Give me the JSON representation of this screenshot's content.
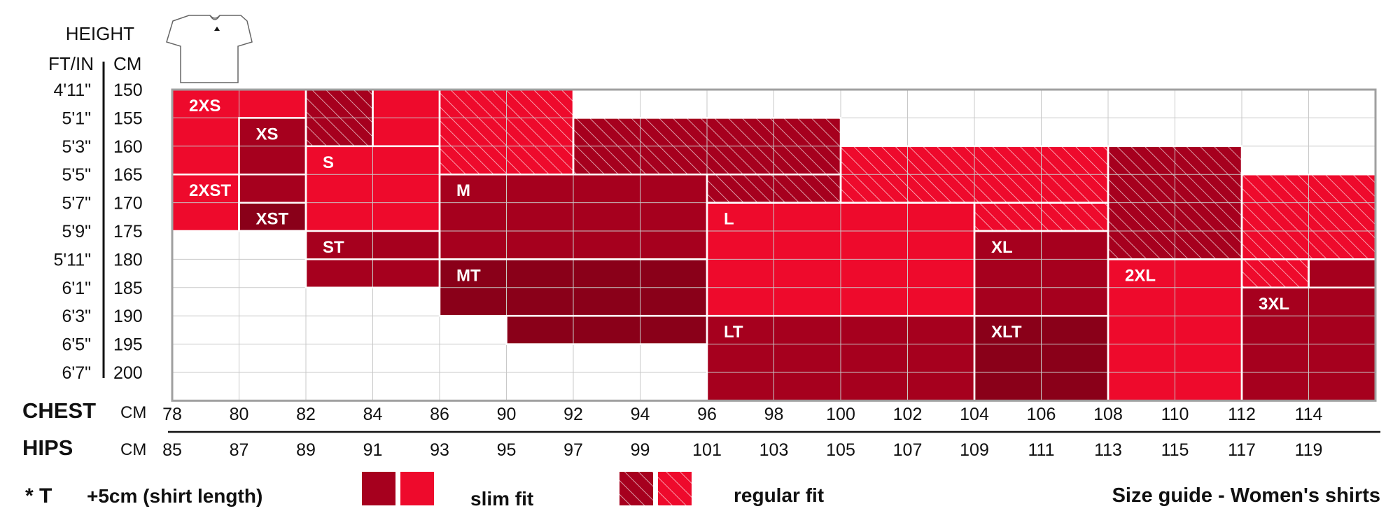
{
  "header": {
    "height_label": "HEIGHT",
    "ftin_label": "FT/IN",
    "cm_label": "CM",
    "shirt_icon": "tshirt-icon"
  },
  "heights_ftin": [
    "4'11\"",
    "5'1\"",
    "5'3\"",
    "5'5\"",
    "5'7\"",
    "5'9\"",
    "5'11\"",
    "6'1\"",
    "6'3\"",
    "6'5\"",
    "6'7\""
  ],
  "heights_cm": [
    "150",
    "155",
    "160",
    "165",
    "170",
    "175",
    "180",
    "185",
    "190",
    "195",
    "200"
  ],
  "chest": {
    "label": "CHEST",
    "unit": "CM",
    "values": [
      "78",
      "80",
      "82",
      "84",
      "86",
      "90",
      "92",
      "94",
      "96",
      "98",
      "100",
      "102",
      "104",
      "106",
      "108",
      "110",
      "112",
      "114"
    ]
  },
  "hips": {
    "label": "HIPS",
    "unit": "CM",
    "values": [
      "85",
      "87",
      "89",
      "91",
      "93",
      "95",
      "97",
      "99",
      "101",
      "103",
      "105",
      "107",
      "109",
      "111",
      "113",
      "115",
      "117",
      "119"
    ]
  },
  "colors": {
    "dark": "#a6001e",
    "bright": "#ee0a2c",
    "darkest": "#8a0019",
    "grid": "#c8c8c8",
    "border": "#a0a0a0"
  },
  "chart_data": {
    "type": "table",
    "columns_count": 18,
    "rows_count": 11,
    "regions": [
      {
        "label": "2XS",
        "fit": "slim",
        "shade": "bright",
        "cells": [
          [
            0,
            0,
            2,
            3
          ]
        ]
      },
      {
        "label": "2XST",
        "fit": "slim",
        "shade": "bright",
        "cells": [
          [
            0,
            3,
            1,
            5
          ]
        ]
      },
      {
        "label": "XS",
        "fit": "slim",
        "shade": "dark",
        "cells": [
          [
            1,
            1,
            2,
            5
          ]
        ]
      },
      {
        "label": "XST",
        "fit": "slim",
        "shade": "darkest",
        "cells": [
          [
            1,
            4,
            2,
            5
          ]
        ]
      },
      {
        "label": "S",
        "fit": "slim",
        "shade": "bright",
        "cells": [
          [
            2,
            2,
            4,
            6
          ],
          [
            3,
            0,
            4,
            2
          ]
        ]
      },
      {
        "label": "ST",
        "fit": "slim",
        "shade": "dark",
        "cells": [
          [
            2,
            5,
            4,
            7
          ]
        ]
      },
      {
        "label": "M",
        "fit": "slim",
        "shade": "dark",
        "cells": [
          [
            4,
            3,
            8,
            6
          ]
        ]
      },
      {
        "label": "MT",
        "fit": "slim",
        "shade": "darkest",
        "cells": [
          [
            4,
            6,
            8,
            8
          ],
          [
            5,
            8,
            8,
            9
          ]
        ]
      },
      {
        "label": "L",
        "fit": "slim",
        "shade": "bright",
        "cells": [
          [
            8,
            4,
            12,
            8
          ]
        ]
      },
      {
        "label": "LT",
        "fit": "slim",
        "shade": "dark",
        "cells": [
          [
            8,
            8,
            12,
            11
          ]
        ]
      },
      {
        "label": "XL",
        "fit": "slim",
        "shade": "dark",
        "cells": [
          [
            12,
            5,
            14,
            8
          ]
        ]
      },
      {
        "label": "XLT",
        "fit": "slim",
        "shade": "darkest",
        "cells": [
          [
            12,
            8,
            14,
            11
          ]
        ]
      },
      {
        "label": "2XL",
        "fit": "slim",
        "shade": "bright",
        "cells": [
          [
            14,
            6,
            16,
            11
          ]
        ]
      },
      {
        "label": "3XL",
        "fit": "slim",
        "shade": "dark",
        "cells": [
          [
            16,
            7,
            18,
            11
          ],
          [
            17,
            6,
            18,
            7
          ]
        ]
      }
    ],
    "regular_regions": [
      {
        "shade": "dark",
        "cells": [
          [
            2,
            0,
            3,
            2
          ]
        ]
      },
      {
        "shade": "bright",
        "cells": [
          [
            4,
            0,
            6,
            3
          ]
        ]
      },
      {
        "shade": "dark",
        "cells": [
          [
            6,
            1,
            10,
            3
          ],
          [
            8,
            3,
            10,
            4
          ]
        ]
      },
      {
        "shade": "bright",
        "cells": [
          [
            10,
            2,
            14,
            4
          ],
          [
            12,
            4,
            14,
            5
          ]
        ]
      },
      {
        "shade": "dark",
        "cells": [
          [
            14,
            2,
            16,
            6
          ]
        ]
      },
      {
        "shade": "bright",
        "cells": [
          [
            16,
            3,
            18,
            6
          ],
          [
            16,
            6,
            17,
            7
          ]
        ]
      }
    ]
  },
  "footer": {
    "tall_marker": "* T",
    "tall_note": "+5cm (shirt length)",
    "slim_fit": "slim fit",
    "regular_fit": "regular fit",
    "guide_title": "Size guide - Women's shirts"
  }
}
